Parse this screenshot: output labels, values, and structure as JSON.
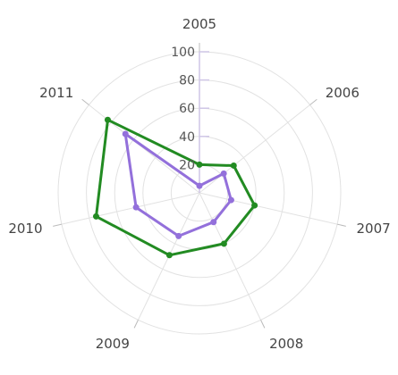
{
  "chart_data": {
    "type": "radar",
    "categories": [
      "2005",
      "2006",
      "2007",
      "2008",
      "2009",
      "2010",
      "2011"
    ],
    "radial_ticks": [
      20,
      40,
      60,
      80,
      100
    ],
    "rlim": [
      0,
      100
    ],
    "grid": true,
    "legend": "none",
    "series": [
      {
        "color": "#228B22",
        "values": [
          20,
          31,
          40,
          40,
          49,
          75,
          83
        ]
      },
      {
        "color": "#9370DB",
        "values": [
          5,
          22,
          23,
          23,
          34,
          46,
          67
        ]
      }
    ]
  },
  "colors": {
    "grid": "#e2e2e2",
    "axis": "#cfc6e6",
    "tick": "#555555",
    "label": "#444444"
  }
}
